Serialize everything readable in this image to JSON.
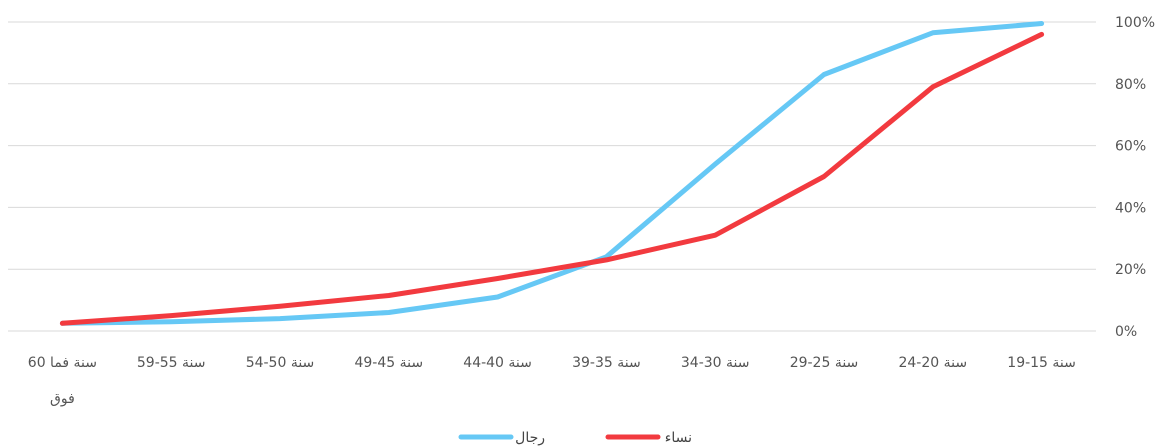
{
  "chart_data": {
    "type": "line",
    "categories": [
      "60 سنة فما فوق",
      "59-55 سنة",
      "54-50 سنة",
      "49-45 سنة",
      "44-40 سنة",
      "39-35 سنة",
      "34-30 سنة",
      "29-25 سنة",
      "24-20 سنة",
      "19-15 سنة"
    ],
    "series": [
      {
        "name": "رجال",
        "color": "#66c8f5",
        "values": [
          2.5,
          3.0,
          4.0,
          6.0,
          11.0,
          24.0,
          54.0,
          83.0,
          96.5,
          99.5
        ]
      },
      {
        "name": "نساء",
        "color": "#f23a3f",
        "values": [
          2.5,
          5.0,
          8.0,
          11.5,
          17.0,
          23.0,
          31.0,
          50.0,
          79.0,
          96.0
        ]
      }
    ],
    "yticks": [
      "0%",
      "20%",
      "40%",
      "60%",
      "80%",
      "100%"
    ],
    "ylim": [
      0,
      100
    ],
    "grid": true,
    "legend_position": "bottom-center",
    "yaxis_position": "right"
  }
}
